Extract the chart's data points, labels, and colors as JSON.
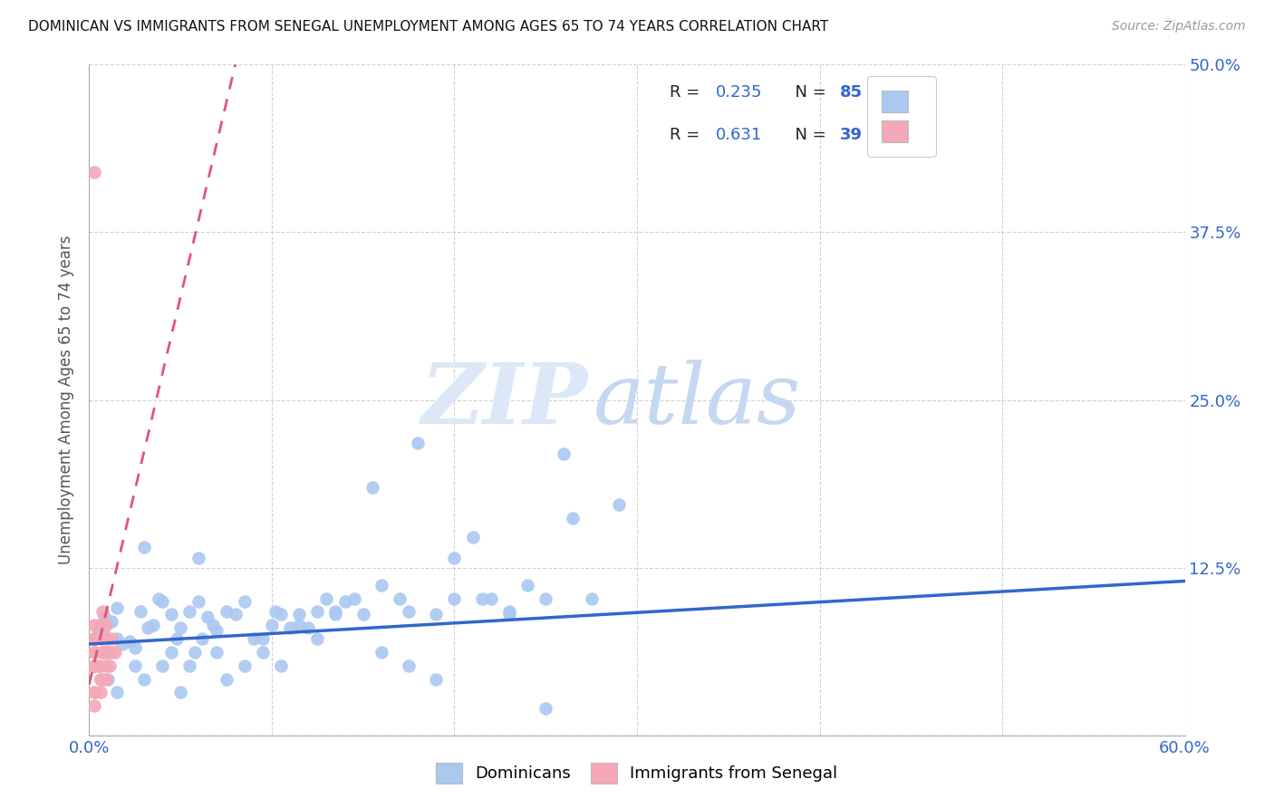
{
  "title": "DOMINICAN VS IMMIGRANTS FROM SENEGAL UNEMPLOYMENT AMONG AGES 65 TO 74 YEARS CORRELATION CHART",
  "source": "Source: ZipAtlas.com",
  "ylabel": "Unemployment Among Ages 65 to 74 years",
  "xlim": [
    0.0,
    0.6
  ],
  "ylim": [
    0.0,
    0.5
  ],
  "xticks": [
    0.0,
    0.1,
    0.2,
    0.3,
    0.4,
    0.5,
    0.6
  ],
  "xticklabels": [
    "0.0%",
    "",
    "",
    "",
    "",
    "",
    "60.0%"
  ],
  "yticks": [
    0.0,
    0.125,
    0.25,
    0.375,
    0.5
  ],
  "yticklabels": [
    "",
    "12.5%",
    "25.0%",
    "37.5%",
    "50.0%"
  ],
  "blue_R": 0.235,
  "blue_N": 85,
  "pink_R": 0.631,
  "pink_N": 39,
  "watermark_zip": "ZIP",
  "watermark_atlas": "atlas",
  "blue_color": "#aac8f0",
  "pink_color": "#f4a8b8",
  "blue_line_color": "#3366cc",
  "pink_line_color": "#e05575",
  "legend_text_color": "#3366cc",
  "legend_label_color": "#222222",
  "blue_scatter_x": [
    0.008,
    0.012,
    0.015,
    0.018,
    0.005,
    0.01,
    0.022,
    0.008,
    0.015,
    0.025,
    0.03,
    0.035,
    0.04,
    0.028,
    0.032,
    0.038,
    0.045,
    0.05,
    0.048,
    0.055,
    0.06,
    0.065,
    0.07,
    0.062,
    0.058,
    0.068,
    0.075,
    0.08,
    0.085,
    0.09,
    0.1,
    0.105,
    0.11,
    0.095,
    0.102,
    0.115,
    0.12,
    0.125,
    0.135,
    0.13,
    0.14,
    0.15,
    0.155,
    0.16,
    0.17,
    0.175,
    0.18,
    0.19,
    0.2,
    0.21,
    0.22,
    0.23,
    0.24,
    0.25,
    0.26,
    0.275,
    0.29,
    0.01,
    0.015,
    0.025,
    0.03,
    0.04,
    0.045,
    0.05,
    0.055,
    0.06,
    0.07,
    0.075,
    0.085,
    0.095,
    0.105,
    0.115,
    0.125,
    0.135,
    0.145,
    0.16,
    0.175,
    0.19,
    0.2,
    0.215,
    0.23,
    0.25,
    0.265
  ],
  "blue_scatter_y": [
    0.075,
    0.085,
    0.072,
    0.068,
    0.078,
    0.062,
    0.07,
    0.088,
    0.095,
    0.065,
    0.14,
    0.082,
    0.1,
    0.092,
    0.08,
    0.102,
    0.09,
    0.08,
    0.072,
    0.092,
    0.1,
    0.088,
    0.078,
    0.072,
    0.062,
    0.082,
    0.092,
    0.09,
    0.1,
    0.072,
    0.082,
    0.09,
    0.08,
    0.072,
    0.092,
    0.09,
    0.08,
    0.092,
    0.09,
    0.102,
    0.1,
    0.09,
    0.185,
    0.112,
    0.102,
    0.092,
    0.218,
    0.09,
    0.102,
    0.148,
    0.102,
    0.09,
    0.112,
    0.102,
    0.21,
    0.102,
    0.172,
    0.042,
    0.032,
    0.052,
    0.042,
    0.052,
    0.062,
    0.032,
    0.052,
    0.132,
    0.062,
    0.042,
    0.052,
    0.062,
    0.052,
    0.082,
    0.072,
    0.092,
    0.102,
    0.062,
    0.052,
    0.042,
    0.132,
    0.102,
    0.092,
    0.02,
    0.162
  ],
  "pink_scatter_x": [
    0.003,
    0.006,
    0.008,
    0.01,
    0.005,
    0.003,
    0.007,
    0.009,
    0.012,
    0.014,
    0.003,
    0.006,
    0.009,
    0.011,
    0.007,
    0.003,
    0.006,
    0.009,
    0.003,
    0.007,
    0.003,
    0.006,
    0.009,
    0.003,
    0.006,
    0.009,
    0.012,
    0.003,
    0.006,
    0.003,
    0.007,
    0.003,
    0.006,
    0.009,
    0.003,
    0.006,
    0.003,
    0.003
  ],
  "pink_scatter_y": [
    0.072,
    0.082,
    0.062,
    0.072,
    0.052,
    0.062,
    0.092,
    0.082,
    0.072,
    0.062,
    0.082,
    0.072,
    0.062,
    0.052,
    0.042,
    0.052,
    0.032,
    0.042,
    0.072,
    0.062,
    0.052,
    0.082,
    0.072,
    0.062,
    0.042,
    0.052,
    0.062,
    0.032,
    0.052,
    0.42,
    0.062,
    0.072,
    0.082,
    0.062,
    0.052,
    0.042,
    0.032,
    0.022
  ],
  "blue_trend_x": [
    0.0,
    0.6
  ],
  "blue_trend_y": [
    0.068,
    0.115
  ],
  "pink_trend_x": [
    0.0,
    0.08
  ],
  "pink_trend_y": [
    0.038,
    0.5
  ]
}
